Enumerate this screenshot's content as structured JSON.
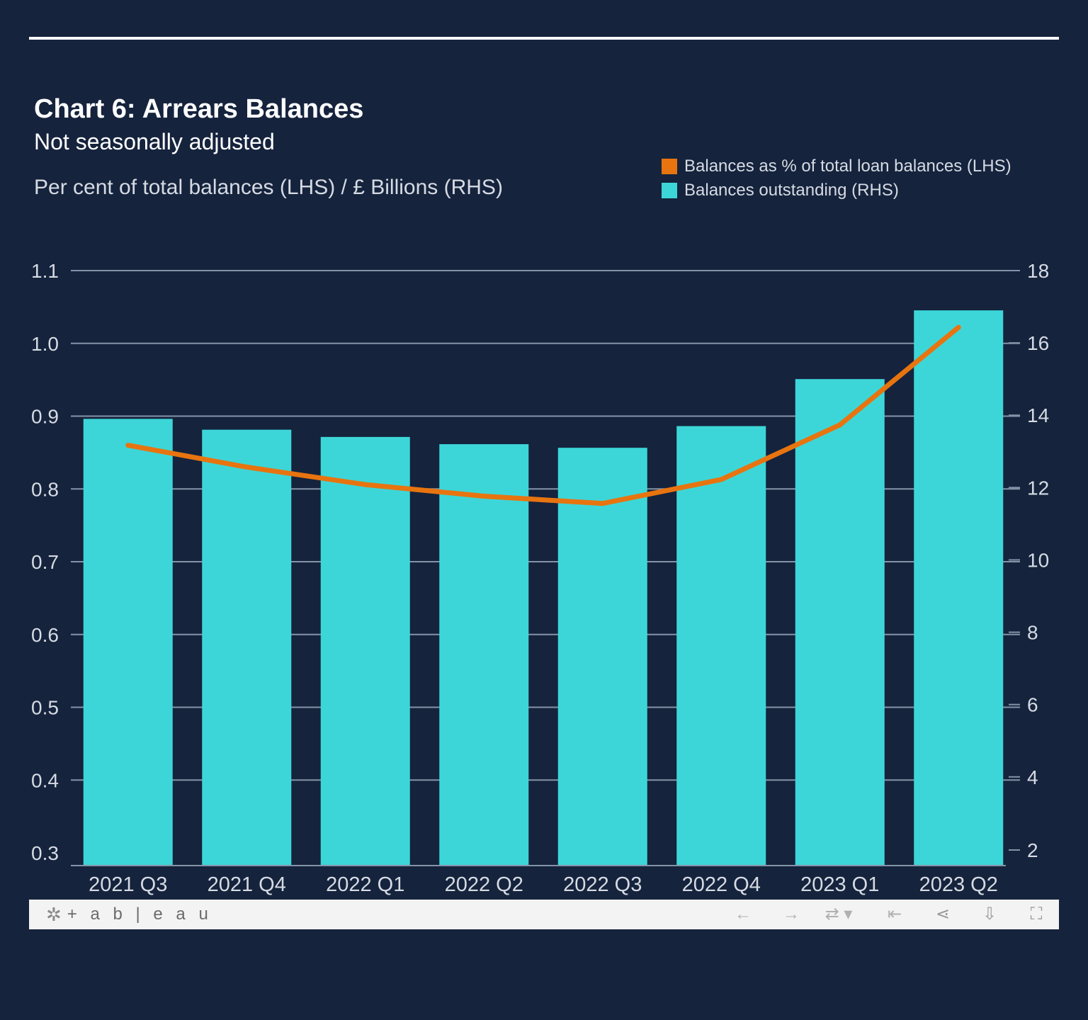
{
  "chart_data": {
    "type": "bar",
    "title": "Chart 6: Arrears Balances",
    "subtitle": "Not seasonally adjusted",
    "units_label": "Per cent of total balances (LHS) / £ Billions (RHS)",
    "categories": [
      "2021 Q3",
      "2021 Q4",
      "2022 Q1",
      "2022 Q2",
      "2022 Q3",
      "2022 Q4",
      "2023 Q1",
      "2023 Q2"
    ],
    "series": [
      {
        "name": "Balances outstanding (RHS)",
        "type": "bar",
        "axis": "right",
        "color": "#3dd6d8",
        "values": [
          13.9,
          13.6,
          13.4,
          13.2,
          13.1,
          13.7,
          15.0,
          16.9
        ]
      },
      {
        "name": "Balances as % of total loan balances (LHS)",
        "type": "line",
        "axis": "left",
        "color": "#e8740f",
        "values": [
          0.86,
          0.83,
          0.806,
          0.79,
          0.78,
          0.813,
          0.888,
          1.022
        ]
      }
    ],
    "y_left": {
      "ticks": [
        "0.3",
        "0.4",
        "0.5",
        "0.6",
        "0.7",
        "0.8",
        "0.9",
        "1.0",
        "1.1"
      ],
      "range": [
        0.3,
        1.1
      ]
    },
    "y_right": {
      "ticks": [
        "2",
        "4",
        "6",
        "8",
        "10",
        "12",
        "14",
        "16",
        "18"
      ],
      "range": [
        1.9,
        18
      ]
    },
    "grid": true,
    "legend_position": "top-right"
  },
  "toolbar": {
    "brand": "+ a b | e a u",
    "icons": [
      "undo-icon",
      "redo-icon",
      "revert-icon",
      "reset-icon",
      "share-icon",
      "download-icon",
      "fullscreen-icon"
    ]
  }
}
